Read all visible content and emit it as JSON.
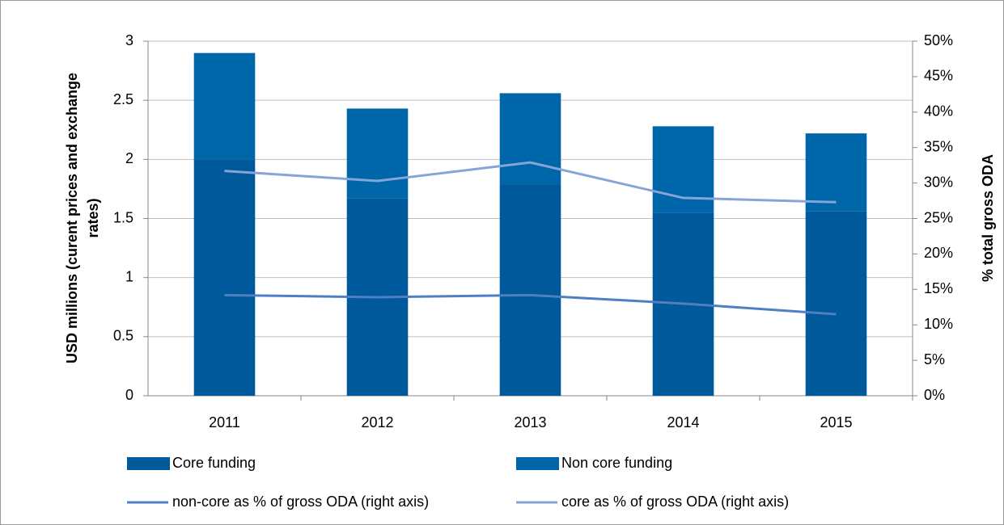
{
  "chart_data": {
    "type": "bar",
    "categories": [
      "2011",
      "2012",
      "2013",
      "2014",
      "2015"
    ],
    "series": [
      {
        "name": "Core funding",
        "color": "#00599a",
        "values": [
          2.0,
          1.67,
          1.79,
          1.55,
          1.56
        ]
      },
      {
        "name": "Non core funding",
        "color": "#0066aa",
        "values": [
          0.9,
          0.76,
          0.77,
          0.73,
          0.66
        ]
      },
      {
        "name": "non-core as % of gross ODA (right axis)",
        "type": "line",
        "axis": "y2",
        "color": "#4f7fc0",
        "values": [
          14.2,
          13.9,
          14.2,
          13.0,
          11.5
        ]
      },
      {
        "name": "core as % of gross ODA (right axis)",
        "type": "line",
        "axis": "y2",
        "color": "#87a4d6",
        "values": [
          31.7,
          30.3,
          32.9,
          27.9,
          27.3
        ]
      }
    ],
    "stacked": true,
    "y_label": [
      "USD millions (curent prices and exchange",
      "rates)"
    ],
    "y2_label": "% total gross ODA",
    "ylim": [
      0,
      3
    ],
    "yticks": [
      0,
      0.5,
      1,
      1.5,
      2,
      2.5,
      3
    ],
    "y2lim": [
      0,
      50
    ],
    "y2ticks": [
      {
        "value": 0,
        "label": "0%"
      },
      {
        "value": 5,
        "label": "5%"
      },
      {
        "value": 10,
        "label": "10%"
      },
      {
        "value": 15,
        "label": "15%"
      },
      {
        "value": 20,
        "label": "20%"
      },
      {
        "value": 25,
        "label": "25%"
      },
      {
        "value": 30,
        "label": "30%"
      },
      {
        "value": 35,
        "label": "35%"
      },
      {
        "value": 40,
        "label": "40%"
      },
      {
        "value": 45,
        "label": "45%"
      },
      {
        "value": 50,
        "label": "50%"
      }
    ],
    "grid": true,
    "legend": "bottom"
  }
}
